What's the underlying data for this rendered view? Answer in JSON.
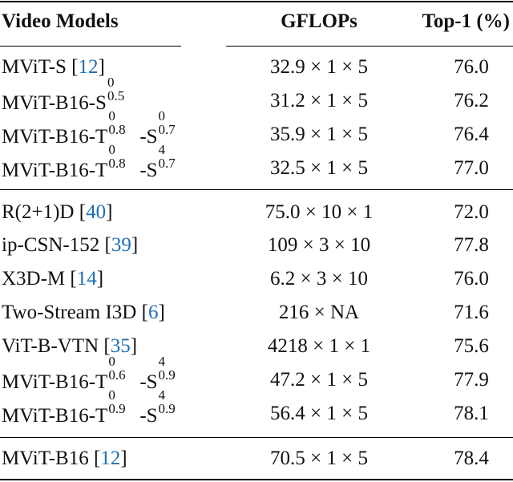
{
  "header": {
    "col_model": "Video Models",
    "col_gflops": "GFLOPs",
    "col_top1": "Top-1 (%)"
  },
  "group1": [
    {
      "name": "MViT-S [",
      "ref": "12",
      "close": "]",
      "gflops": "32.9 × 1 × 5",
      "top1": "76.0"
    },
    {
      "name_pre": "MViT-B16-S",
      "s_sup": "0",
      "s_sub": "0.5",
      "gflops": "31.2 × 1 × 5",
      "top1": "76.2"
    },
    {
      "name_pre": "MViT-B16-T",
      "t_sup": "0",
      "t_sub": "0.8",
      "mid": "-S",
      "s_sup": "0",
      "s_sub": "0.7",
      "gflops": "35.9 × 1 × 5",
      "top1": "76.4"
    },
    {
      "name_pre": "MViT-B16-T",
      "t_sup": "0",
      "t_sub": "0.8",
      "mid": "-S",
      "s_sup": "4",
      "s_sub": "0.7",
      "gflops": "32.5 × 1 × 5",
      "top1": "77.0"
    }
  ],
  "group2": [
    {
      "name": "R(2+1)D [",
      "ref": "40",
      "close": "]",
      "gflops": "75.0 × 10 × 1",
      "top1": "72.0"
    },
    {
      "name": "ip-CSN-152 [",
      "ref": "39",
      "close": "]",
      "gflops": "109 × 3 × 10",
      "top1": "77.8"
    },
    {
      "name": "X3D-M [",
      "ref": "14",
      "close": "]",
      "gflops": "6.2 × 3 × 10",
      "top1": "76.0"
    },
    {
      "name": "Two-Stream I3D [",
      "ref": "6",
      "close": "]",
      "gflops": "216 × NA",
      "top1": "71.6"
    },
    {
      "name": "ViT-B-VTN [",
      "ref": "35",
      "close": "]",
      "gflops": "4218 × 1 × 1",
      "top1": "75.6"
    },
    {
      "name_pre": "MViT-B16-T",
      "t_sup": "0",
      "t_sub": "0.6",
      "mid": "-S",
      "s_sup": "4",
      "s_sub": "0.9",
      "gflops": "47.2 × 1 × 5",
      "top1": "77.9"
    },
    {
      "name_pre": "MViT-B16-T",
      "t_sup": "0",
      "t_sub": "0.9",
      "mid": "-S",
      "s_sup": "4",
      "s_sub": "0.9",
      "gflops": "56.4 × 1 × 5",
      "top1": "78.1"
    }
  ],
  "group3": [
    {
      "name": "MViT-B16 [",
      "ref": "12",
      "close": "]",
      "gflops": "70.5 × 1 × 5",
      "top1": "78.4"
    }
  ]
}
